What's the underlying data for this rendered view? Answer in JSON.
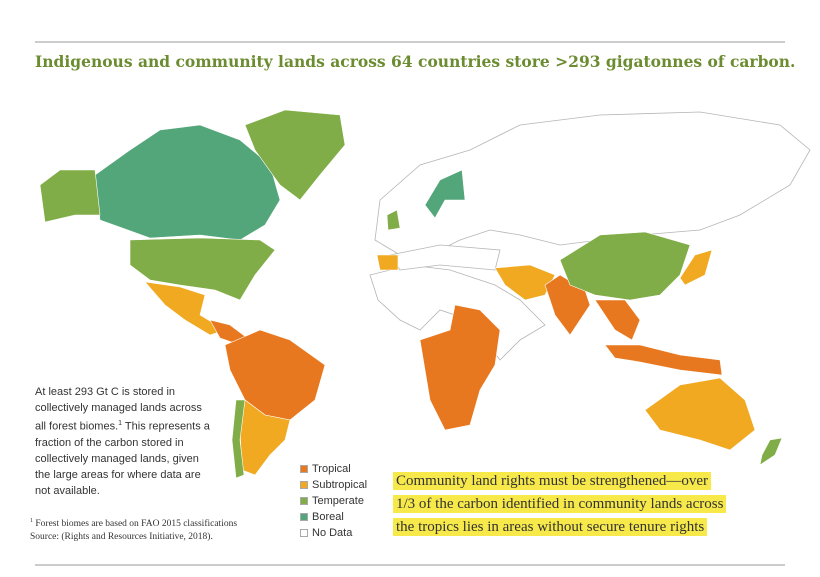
{
  "title": "Indigenous and community lands across 64 countries store >293 gigatonnes of carbon.",
  "note": {
    "before": "At least 293 Gt C is stored in collectively managed lands across all forest biomes.",
    "mark": "1",
    "after": "This represents a fraction of the carbon stored in collectively managed lands, given the large areas for where data are not available."
  },
  "legend": [
    {
      "label": "Tropical",
      "color": "#e8781f"
    },
    {
      "label": "Subtropical",
      "color": "#f0a920"
    },
    {
      "label": "Temperate",
      "color": "#80ad47"
    },
    {
      "label": "Boreal",
      "color": "#52a67a"
    },
    {
      "label": "No Data",
      "color": "#ffffff"
    }
  ],
  "callout": [
    "Community land rights must be strengthened—over",
    "1/3 of the carbon identified in community lands across",
    "the tropics lies in areas without secure tenure rights"
  ],
  "footnote": {
    "mark": "1",
    "lines": [
      "Forest biomes are based on FAO 2015 classifications",
      "Source: (Rights and Resources Initiative, 2018)."
    ]
  }
}
